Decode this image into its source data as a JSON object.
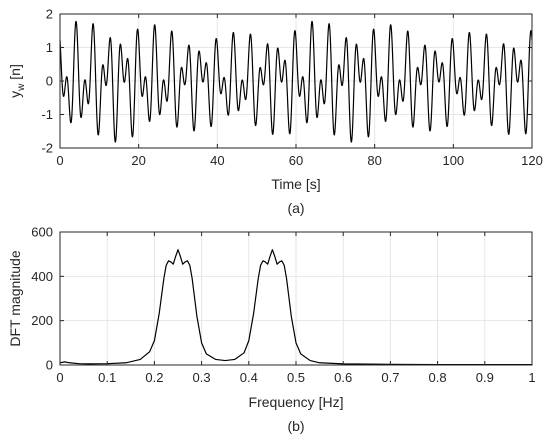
{
  "chart_data": [
    {
      "type": "line",
      "caption": "(a)",
      "xlabel": "Time [s]",
      "ylabel": "y",
      "ylabel_subscript": "w",
      "ylabel_unit": " [n]",
      "xlim": [
        0,
        120
      ],
      "ylim": [
        -2,
        2
      ],
      "xticks": [
        "0",
        "20",
        "40",
        "60",
        "80",
        "100",
        "120"
      ],
      "yticks": [
        "-2",
        "-1",
        "0",
        "1",
        "2"
      ],
      "grid": true,
      "series": [
        {
          "signal": "sum of sinusoids, frequencies 0.25 Hz and 0.45 Hz, slowly varying amplitude",
          "frequencies_hz": [
            0.25,
            0.45
          ],
          "amplitude_range": [
            0.9,
            1.75
          ],
          "mean": 0
        }
      ]
    },
    {
      "type": "line",
      "caption": "(b)",
      "xlabel": "Frequency [Hz]",
      "ylabel": "DFT magnitude",
      "xlim": [
        0,
        1
      ],
      "ylim": [
        0,
        600
      ],
      "xticks": [
        "0",
        "0.1",
        "0.2",
        "0.3",
        "0.4",
        "0.5",
        "0.6",
        "0.7",
        "0.8",
        "0.9",
        "1"
      ],
      "yticks": [
        "0",
        "200",
        "400",
        "600"
      ],
      "grid": true,
      "series": [
        {
          "x": [
            0,
            0.01,
            0.02,
            0.04,
            0.06,
            0.1,
            0.14,
            0.17,
            0.19,
            0.2,
            0.21,
            0.22,
            0.225,
            0.23,
            0.235,
            0.24,
            0.245,
            0.25,
            0.255,
            0.26,
            0.265,
            0.27,
            0.275,
            0.28,
            0.29,
            0.3,
            0.31,
            0.33,
            0.35,
            0.37,
            0.39,
            0.4,
            0.41,
            0.42,
            0.425,
            0.43,
            0.435,
            0.44,
            0.445,
            0.45,
            0.455,
            0.46,
            0.465,
            0.47,
            0.475,
            0.48,
            0.49,
            0.5,
            0.51,
            0.53,
            0.55,
            0.6,
            0.7,
            0.8,
            0.9,
            1.0
          ],
          "y": [
            10,
            14,
            10,
            6,
            5,
            6,
            10,
            25,
            60,
            110,
            230,
            390,
            450,
            470,
            465,
            455,
            490,
            520,
            490,
            455,
            465,
            470,
            450,
            390,
            220,
            100,
            50,
            25,
            20,
            25,
            55,
            110,
            230,
            390,
            450,
            470,
            465,
            455,
            490,
            520,
            490,
            455,
            465,
            470,
            450,
            390,
            220,
            100,
            50,
            20,
            10,
            5,
            3,
            2,
            2,
            2
          ]
        }
      ]
    }
  ]
}
